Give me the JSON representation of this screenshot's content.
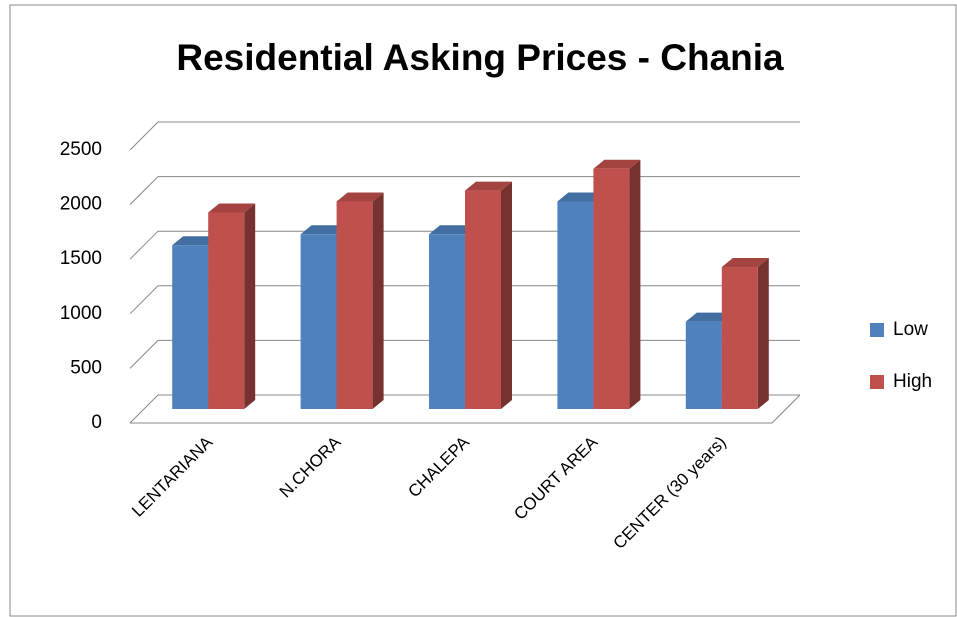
{
  "chart_data": {
    "type": "bar3d",
    "title": "Residential Asking Prices - Chania",
    "categories": [
      "LENTARIANA",
      "N.CHORA",
      "CHALEPA",
      "COURT AREA",
      "CENTER (30 years)"
    ],
    "series": [
      {
        "name": "Low",
        "color": "#4f81bd",
        "values": [
          1500,
          1600,
          1600,
          1900,
          800
        ]
      },
      {
        "name": "High",
        "color": "#c0504d",
        "values": [
          1800,
          1900,
          2000,
          2200,
          1300
        ]
      }
    ],
    "ylim": [
      0,
      2500
    ],
    "yticks": [
      0,
      500,
      1000,
      1500,
      2000,
      2500
    ],
    "grid": true,
    "legend": "right"
  }
}
